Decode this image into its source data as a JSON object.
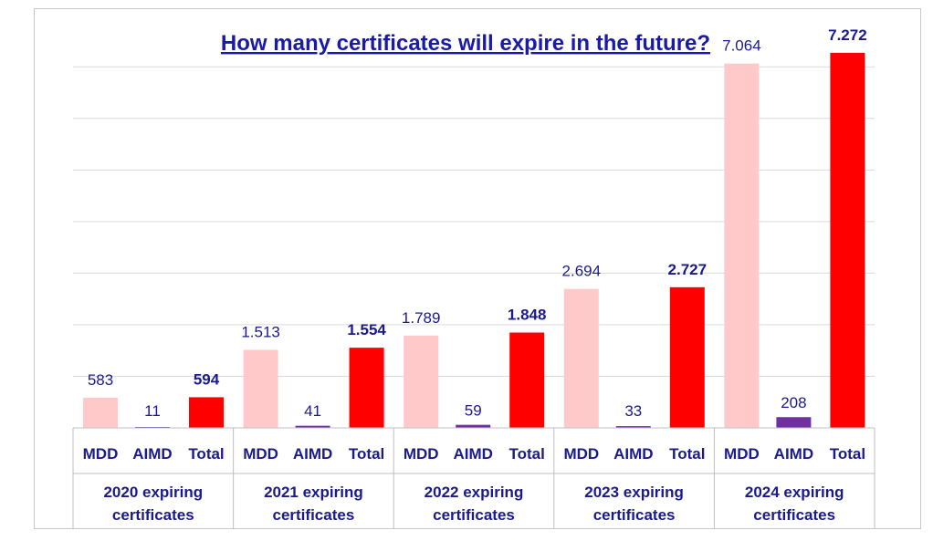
{
  "chart_data": {
    "type": "bar",
    "title": "How many certificates will expire in the future?",
    "ylim": [
      0,
      7500
    ],
    "grid": true,
    "groups": [
      {
        "label_line1": "2020 expiring",
        "label_line2": "certificates",
        "bars": [
          {
            "category": "MDD",
            "value": 583,
            "label": "583"
          },
          {
            "category": "AIMD",
            "value": 11,
            "label": "11"
          },
          {
            "category": "Total",
            "value": 594,
            "label": "594"
          }
        ]
      },
      {
        "label_line1": "2021 expiring",
        "label_line2": "certificates",
        "bars": [
          {
            "category": "MDD",
            "value": 1513,
            "label": "1.513"
          },
          {
            "category": "AIMD",
            "value": 41,
            "label": "41"
          },
          {
            "category": "Total",
            "value": 1554,
            "label": "1.554"
          }
        ]
      },
      {
        "label_line1": "2022 expiring",
        "label_line2": "certificates",
        "bars": [
          {
            "category": "MDD",
            "value": 1789,
            "label": "1.789"
          },
          {
            "category": "AIMD",
            "value": 59,
            "label": "59"
          },
          {
            "category": "Total",
            "value": 1848,
            "label": "1.848"
          }
        ]
      },
      {
        "label_line1": "2023 expiring",
        "label_line2": "certificates",
        "bars": [
          {
            "category": "MDD",
            "value": 2694,
            "label": "2.694"
          },
          {
            "category": "AIMD",
            "value": 33,
            "label": "33"
          },
          {
            "category": "Total",
            "value": 2727,
            "label": "2.727"
          }
        ]
      },
      {
        "label_line1": "2024 expiring",
        "label_line2": "certificates",
        "bars": [
          {
            "category": "MDD",
            "value": 7064,
            "label": "7.064"
          },
          {
            "category": "AIMD",
            "value": 208,
            "label": "208"
          },
          {
            "category": "Total",
            "value": 7272,
            "label": "7.272"
          }
        ]
      }
    ],
    "colors": {
      "MDD": "#ffc9c9",
      "AIMD": "#7030a0",
      "Total": "#ff0000"
    }
  }
}
